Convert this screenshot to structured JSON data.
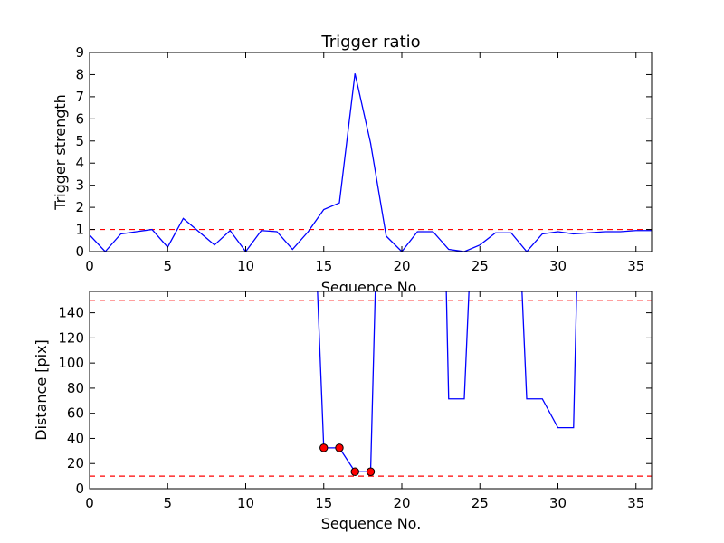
{
  "chart_data": [
    {
      "type": "line",
      "title": "Trigger ratio",
      "xlabel": "Sequence No.",
      "ylabel": "Trigger strength",
      "xlim": [
        0,
        36
      ],
      "ylim": [
        0,
        9
      ],
      "xticks": [
        0,
        5,
        10,
        15,
        20,
        25,
        30,
        35
      ],
      "yticks": [
        0,
        1,
        2,
        3,
        4,
        5,
        6,
        7,
        8,
        9
      ],
      "grid": false,
      "series": [
        {
          "color": "#0000ff",
          "x": [
            0,
            1,
            2,
            3,
            4,
            5,
            6,
            7,
            8,
            9,
            10,
            11,
            12,
            13,
            14,
            15,
            16,
            17,
            18,
            19,
            20,
            21,
            22,
            23,
            24,
            25,
            26,
            27,
            28,
            29,
            30,
            31,
            32,
            33,
            34,
            35,
            36
          ],
          "values": [
            0.75,
            0.0,
            0.8,
            0.9,
            1.0,
            0.2,
            1.5,
            0.9,
            0.3,
            0.95,
            0.0,
            0.95,
            0.9,
            0.1,
            0.9,
            1.9,
            2.2,
            8.05,
            4.9,
            0.7,
            0.0,
            0.9,
            0.9,
            0.1,
            0.0,
            0.3,
            0.85,
            0.85,
            0.0,
            0.8,
            0.9,
            0.8,
            0.85,
            0.9,
            0.9,
            0.95,
            0.95
          ]
        }
      ],
      "hlines": [
        {
          "y": 1.0,
          "color": "#ff0000",
          "style": "dashed"
        }
      ]
    },
    {
      "type": "line",
      "title": "",
      "xlabel": "Sequence No.",
      "ylabel": "Distance [pix]",
      "xlim": [
        0,
        36
      ],
      "ylim": [
        0,
        157
      ],
      "xticks": [
        0,
        5,
        10,
        15,
        20,
        25,
        30,
        35
      ],
      "yticks": [
        0,
        20,
        40,
        60,
        80,
        100,
        120,
        140
      ],
      "grid": false,
      "series": [
        {
          "color": "#0000ff",
          "segments": [
            {
              "x": [
                14.6,
                15,
                16,
                17,
                18,
                18.3
              ],
              "values": [
                157,
                32.5,
                32.5,
                13.5,
                13.5,
                157
              ]
            },
            {
              "x": [
                22.85,
                23,
                24,
                24.3
              ],
              "values": [
                157,
                71.5,
                71.5,
                157
              ]
            },
            {
              "x": [
                27.7,
                28,
                29,
                30,
                31,
                31.2
              ],
              "values": [
                157,
                71.5,
                71.5,
                48.5,
                48.5,
                157
              ]
            }
          ]
        },
        {
          "color": "#ff0000",
          "marker": "circle",
          "x": [
            15,
            16,
            17,
            18
          ],
          "values": [
            32.5,
            32.5,
            13.5,
            13.5
          ]
        }
      ],
      "hlines": [
        {
          "y": 150,
          "color": "#ff0000",
          "style": "dashed"
        },
        {
          "y": 10,
          "color": "#ff0000",
          "style": "dashed"
        }
      ]
    }
  ]
}
